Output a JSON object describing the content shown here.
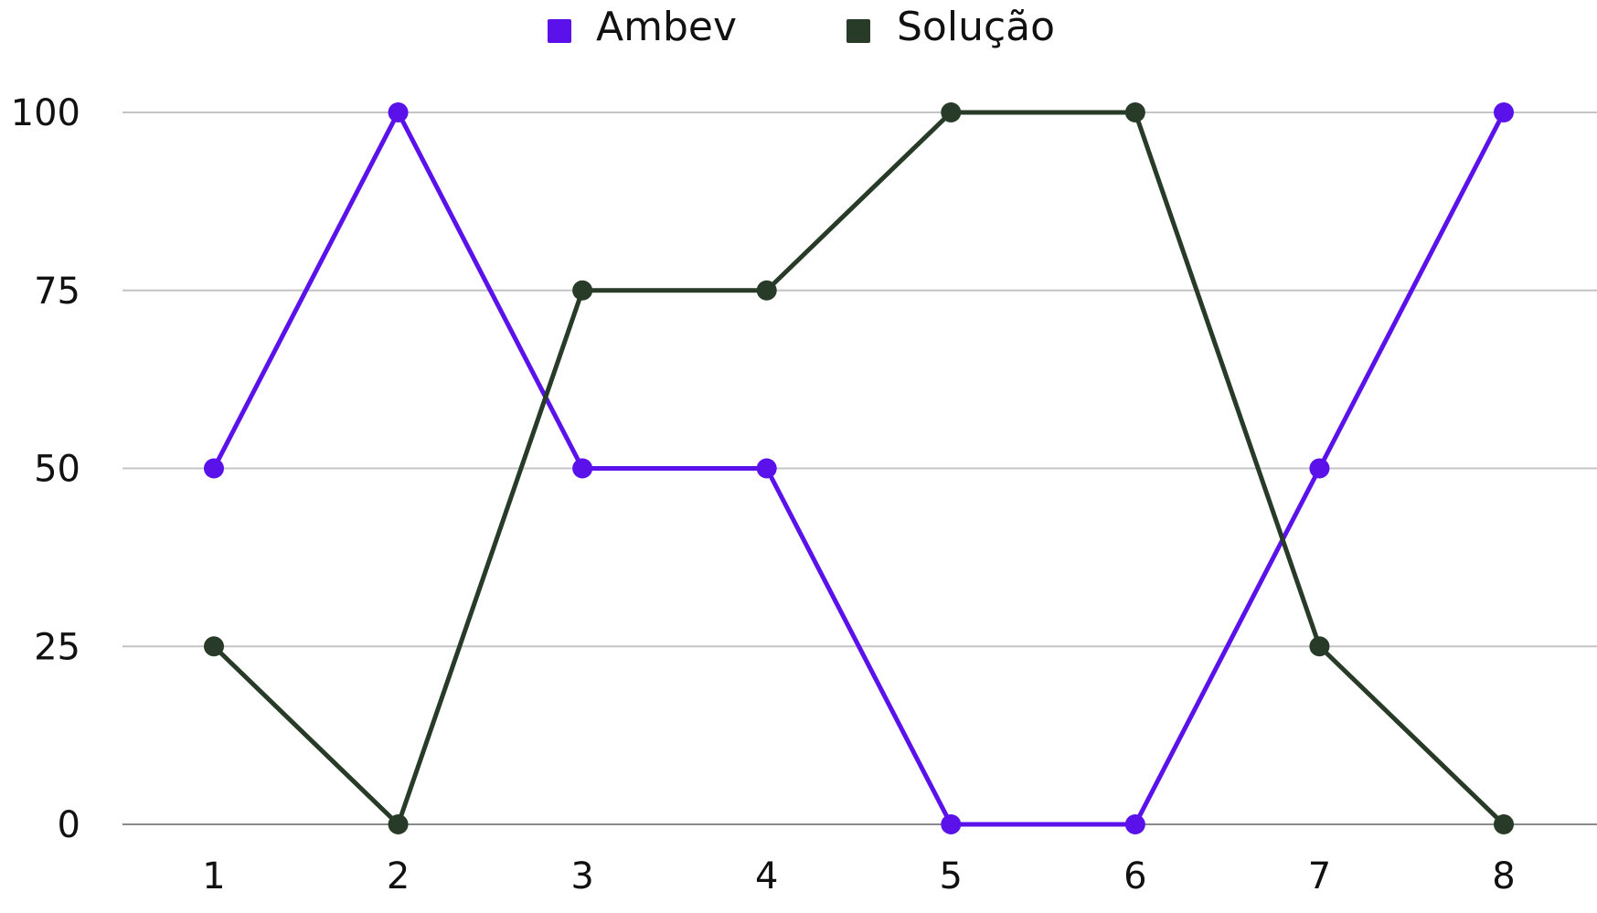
{
  "chart_data": {
    "type": "line",
    "title": "",
    "xlabel": "",
    "ylabel": "",
    "categories": [
      "1",
      "2",
      "3",
      "4",
      "5",
      "6",
      "7",
      "8"
    ],
    "ylim": [
      0,
      100
    ],
    "yticks": [
      0,
      25,
      50,
      75,
      100
    ],
    "grid": true,
    "legend_position": "top-center",
    "series": [
      {
        "name": "Ambev",
        "color": "#5b12ea",
        "values": [
          50,
          100,
          50,
          50,
          0,
          0,
          50,
          100
        ]
      },
      {
        "name": "Solução",
        "color": "#283a28",
        "values": [
          25,
          0,
          75,
          75,
          100,
          100,
          25,
          0
        ]
      }
    ]
  }
}
